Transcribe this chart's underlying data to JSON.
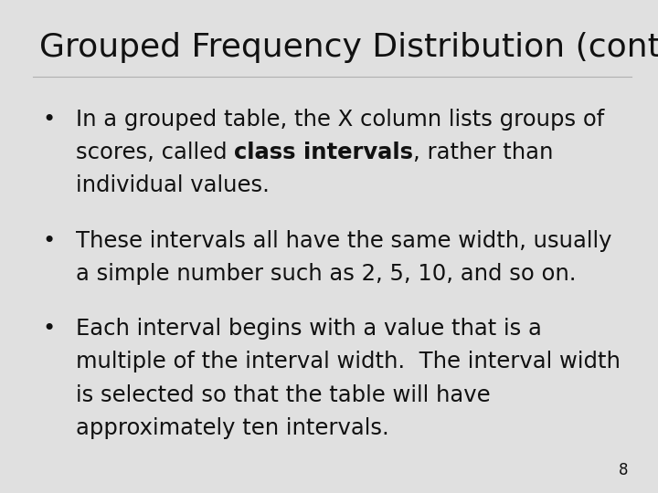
{
  "title": "Grouped Frequency Distribution (cont.)",
  "title_fontsize": 26,
  "background_color": "#e0e0e0",
  "text_color": "#111111",
  "page_number": "8",
  "body_fontsize": 17.5,
  "bullet_char": "•",
  "bullet1_line1": "In a grouped table, the X column lists groups of",
  "bullet1_line2_pre": "scores, called ",
  "bullet1_line2_bold": "class intervals",
  "bullet1_line2_post": ", rather than",
  "bullet1_line3": "individual values.",
  "bullet2_line1": "These intervals all have the same width, usually",
  "bullet2_line2": "a simple number such as 2, 5, 10, and so on.",
  "bullet3_line1": "Each interval begins with a value that is a",
  "bullet3_line2": "multiple of the interval width.  The interval width",
  "bullet3_line3": "is selected so that the table will have",
  "bullet3_line4": "approximately ten intervals."
}
